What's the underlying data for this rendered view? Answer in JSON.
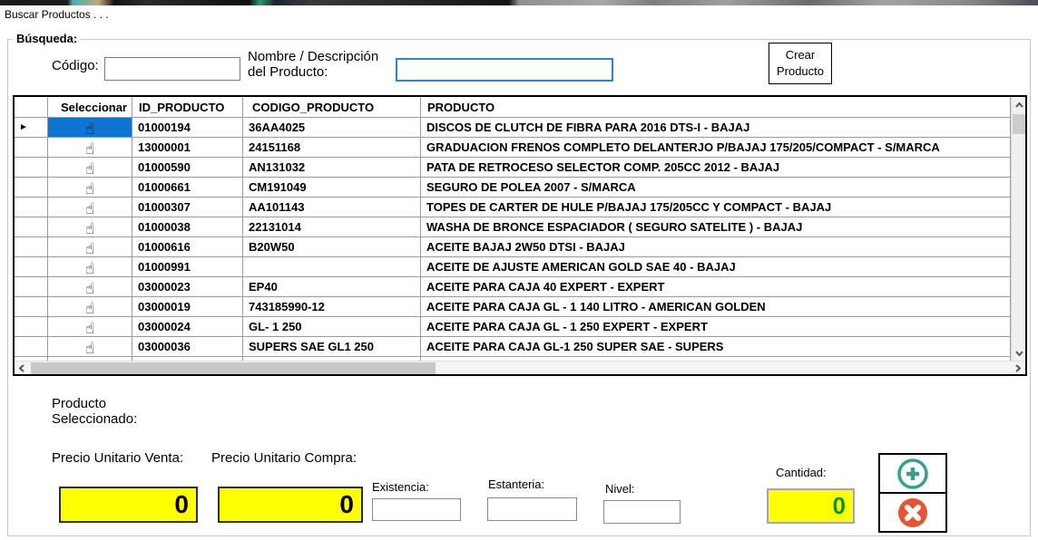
{
  "window": {
    "title": "Buscar Productos . . ."
  },
  "search": {
    "group_label": "Búsqueda:",
    "codigo_label": "Código:",
    "codigo_value": "",
    "nombre_label": "Nombre / Descripción\ndel Producto:",
    "nombre_value": "",
    "crear_button": "Crear\nProducto"
  },
  "grid": {
    "columns": {
      "seleccionar": "Seleccionar",
      "id": "ID_PRODUCTO",
      "codigo": "CODIGO_PRODUCTO",
      "producto": "PRODUCTO"
    },
    "hand_icon": "☝",
    "current_row_arrow": "►",
    "rows": [
      {
        "id": "01000194",
        "codigo": "36AA4025",
        "producto": "DISCOS DE CLUTCH DE FIBRA PARA 2016 DTS-I - BAJAJ",
        "selected": true
      },
      {
        "id": "13000001",
        "codigo": "24151168",
        "producto": "GRADUACION FRENOS COMPLETO DELANTERJO P/BAJAJ 175/205/COMPACT - S/MARCA",
        "selected": false
      },
      {
        "id": "01000590",
        "codigo": "AN131032",
        "producto": "PATA DE RETROCESO SELECTOR  COMP. 205CC 2012 - BAJAJ",
        "selected": false
      },
      {
        "id": "01000661",
        "codigo": "CM191049",
        "producto": "SEGURO DE POLEA 2007 - S/MARCA",
        "selected": false
      },
      {
        "id": "01000307",
        "codigo": "AA101143",
        "producto": "TOPES DE CARTER DE HULE  P/BAJAJ 175/205CC Y COMPACT - BAJAJ",
        "selected": false
      },
      {
        "id": "01000038",
        "codigo": "22131014",
        "producto": "WASHA DE BRONCE ESPACIADOR ( SEGURO  SATELITE ) - BAJAJ",
        "selected": false
      },
      {
        "id": "01000616",
        "codigo": "B20W50",
        "producto": "ACEITE BAJAJ 2W50 DTSI - BAJAJ",
        "selected": false
      },
      {
        "id": "01000991",
        "codigo": "",
        "producto": "ACEITE DE AJUSTE  AMERICAN GOLD SAE 40 - BAJAJ",
        "selected": false
      },
      {
        "id": "03000023",
        "codigo": "EP40",
        "producto": "ACEITE PARA CAJA 40 EXPERT - EXPERT",
        "selected": false
      },
      {
        "id": "03000019",
        "codigo": "743185990-12",
        "producto": "ACEITE PARA CAJA GL - 1 140 LITRO - AMERICAN GOLDEN",
        "selected": false
      },
      {
        "id": "03000024",
        "codigo": "GL- 1 250",
        "producto": "ACEITE PARA CAJA GL - 1 250 EXPERT - EXPERT",
        "selected": false
      },
      {
        "id": "03000036",
        "codigo": "SUPERS SAE GL1 250",
        "producto": "ACEITE PARA CAJA GL-1  250 SUPER SAE  - SUPERS",
        "selected": false
      }
    ]
  },
  "details": {
    "producto_seleccionado_label": "Producto\nSeleccionado:",
    "precio_venta_label": "Precio Unitario Venta:",
    "precio_venta_value": "0",
    "precio_compra_label": "Precio Unitario Compra:",
    "precio_compra_value": "0",
    "existencia_label": "Existencia:",
    "existencia_value": "",
    "estanteria_label": "Estanteria:",
    "estanteria_value": "",
    "nivel_label": "Nivel:",
    "nivel_value": "",
    "cantidad_label": "Cantidad:",
    "cantidad_value": "0"
  },
  "colors": {
    "selection_blue": "#0e75d3",
    "field_yellow": "#ffff00",
    "cantidad_green": "#009600",
    "add_teal": "#33a28c",
    "delete_orange": "#e85430",
    "focus_blue": "#2787cf"
  }
}
